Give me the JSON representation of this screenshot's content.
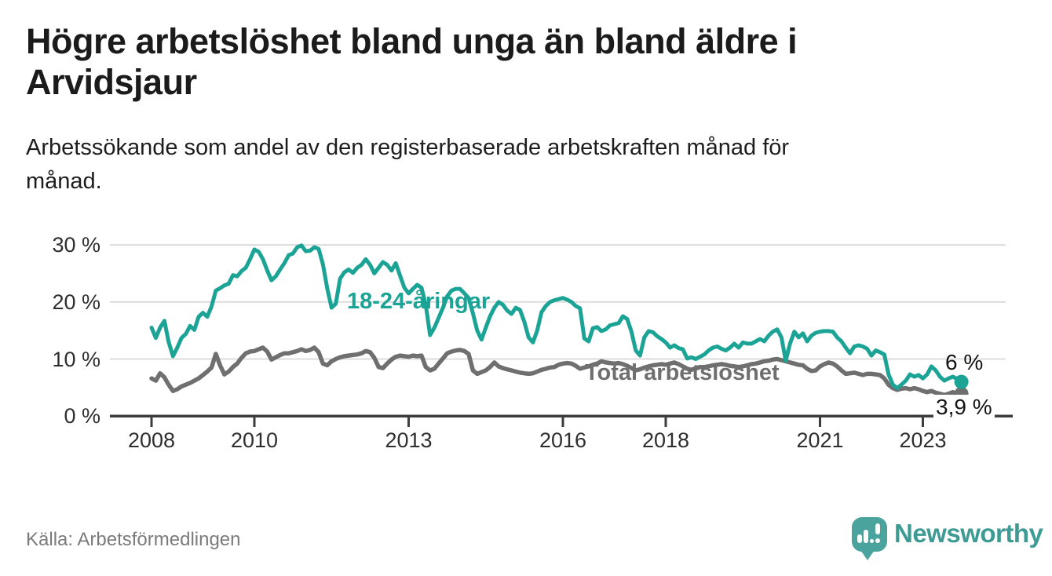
{
  "header": {
    "title_line1": "Högre arbetslöshet bland unga än bland äldre i",
    "title_line2": "Arvidsjaur",
    "subtitle_line1": "Arbetssökande som andel av den registerbaserade arbetskraften månad för",
    "subtitle_line2": "månad."
  },
  "footer": {
    "source": "Källa: Arbetsförmedlingen",
    "brand": "Newsworthy",
    "brand_text_color": "#3e9b93",
    "brand_bubble_color": "#4ba39d"
  },
  "chart_data": {
    "type": "line",
    "title": "Högre arbetslöshet bland unga än bland äldre i Arvidsjaur",
    "subtitle": "Arbetssökande som andel av den registerbaserade arbetskraften månad för månad.",
    "unit": "%",
    "frequency": "monthly",
    "x_start": "2008-01",
    "x_end": "2023-10",
    "ylim": [
      0,
      31
    ],
    "grid": true,
    "legend_position": "inline-labels",
    "y_ticks": [
      "30 %",
      "20 %",
      "10 %",
      "0 %"
    ],
    "x_ticks": [
      "2008",
      "2010",
      "2013",
      "2016",
      "2018",
      "2021",
      "2023"
    ],
    "x_tick_years": [
      2008,
      2010,
      2013,
      2016,
      2018,
      2021,
      2023
    ],
    "series": [
      {
        "name": "18-24-åringar",
        "color": "#1ba496",
        "end_label": "6 %",
        "end_value": 6.0,
        "values": [
          15.5,
          13.7,
          15.5,
          16.7,
          13.0,
          10.5,
          12.0,
          13.7,
          14.4,
          15.8,
          15.1,
          17.4,
          18.1,
          17.4,
          19.2,
          22.0,
          22.4,
          22.9,
          23.2,
          24.7,
          24.5,
          25.4,
          26.0,
          27.5,
          29.2,
          28.8,
          27.5,
          25.5,
          23.8,
          24.5,
          25.7,
          26.8,
          28.2,
          28.5,
          29.6,
          29.9,
          28.9,
          29.0,
          29.6,
          29.3,
          26.6,
          22.4,
          19.0,
          19.7,
          24.1,
          25.2,
          25.7,
          25.1,
          26.0,
          26.5,
          27.5,
          26.5,
          25.0,
          26.0,
          27.0,
          26.5,
          25.5,
          26.8,
          24.6,
          22.5,
          21.5,
          22.3,
          23.0,
          22.5,
          19.5,
          14.2,
          15.5,
          17.2,
          19.0,
          21.0,
          22.0,
          22.3,
          22.3,
          21.5,
          20.7,
          18.0,
          15.0,
          13.4,
          15.5,
          17.5,
          19.0,
          20.0,
          19.5,
          18.5,
          17.9,
          19.0,
          18.6,
          16.5,
          13.8,
          12.9,
          15.0,
          18.2,
          19.3,
          20.0,
          20.3,
          20.5,
          20.7,
          20.4,
          20.0,
          19.3,
          18.9,
          13.6,
          13.1,
          15.4,
          15.6,
          14.9,
          15.2,
          15.9,
          16.1,
          16.3,
          17.5,
          17.0,
          14.8,
          11.5,
          10.6,
          13.8,
          14.9,
          14.7,
          14.0,
          13.5,
          12.9,
          12.0,
          12.4,
          11.9,
          11.7,
          10.1,
          10.3,
          10.0,
          10.4,
          10.8,
          11.5,
          12.0,
          12.2,
          11.8,
          11.5,
          12.0,
          12.7,
          12.0,
          12.9,
          12.7,
          12.7,
          13.1,
          13.5,
          13.1,
          14.1,
          14.8,
          15.2,
          13.8,
          9.7,
          12.7,
          14.8,
          13.8,
          14.5,
          13.1,
          14.1,
          14.6,
          14.8,
          14.9,
          14.9,
          14.8,
          13.8,
          13.1,
          12.0,
          11.0,
          12.2,
          12.4,
          12.2,
          11.8,
          10.6,
          11.5,
          11.2,
          10.8,
          7.3,
          5.5,
          4.9,
          5.5,
          6.2,
          7.3,
          6.9,
          7.2,
          6.6,
          7.3,
          8.7,
          8.0,
          6.9,
          6.2,
          6.6,
          6.9,
          6.5,
          6.0
        ]
      },
      {
        "name": "Total arbetslöshet",
        "color": "#6f6f6f",
        "end_label": "3,9 %",
        "end_value": 3.9,
        "values": [
          6.6,
          6.2,
          7.5,
          6.8,
          5.5,
          4.4,
          4.7,
          5.2,
          5.5,
          5.8,
          6.2,
          6.6,
          7.2,
          7.8,
          8.5,
          10.9,
          8.9,
          7.3,
          7.8,
          8.6,
          9.2,
          10.2,
          11.0,
          11.3,
          11.4,
          11.7,
          12.0,
          11.3,
          9.9,
          10.3,
          10.7,
          11.0,
          11.0,
          11.2,
          11.4,
          11.7,
          11.4,
          11.6,
          12.0,
          11.2,
          9.2,
          8.9,
          9.6,
          10.0,
          10.3,
          10.5,
          10.6,
          10.7,
          10.8,
          11.0,
          11.4,
          11.2,
          10.2,
          8.6,
          8.4,
          9.2,
          9.9,
          10.4,
          10.6,
          10.5,
          10.4,
          10.6,
          10.5,
          10.6,
          8.6,
          8.0,
          8.3,
          9.2,
          10.1,
          11.0,
          11.3,
          11.5,
          11.6,
          11.4,
          10.9,
          8.0,
          7.4,
          7.7,
          8.0,
          8.6,
          9.4,
          8.7,
          8.4,
          8.2,
          8.0,
          7.8,
          7.6,
          7.5,
          7.4,
          7.5,
          7.8,
          8.1,
          8.3,
          8.5,
          8.6,
          9.0,
          9.2,
          9.3,
          9.2,
          8.8,
          8.3,
          8.5,
          8.7,
          9.0,
          9.2,
          9.6,
          9.4,
          9.3,
          9.2,
          9.3,
          9.1,
          8.8,
          8.4,
          8.0,
          8.2,
          8.5,
          8.7,
          8.9,
          9.0,
          9.1,
          9.0,
          9.2,
          9.4,
          9.1,
          8.7,
          8.3,
          8.1,
          8.4,
          8.6,
          8.6,
          8.7,
          8.9,
          9.0,
          9.1,
          9.0,
          8.8,
          8.7,
          8.6,
          8.7,
          8.9,
          9.1,
          9.2,
          9.4,
          9.6,
          9.7,
          9.9,
          10.0,
          9.8,
          9.6,
          9.4,
          9.2,
          9.0,
          8.9,
          8.3,
          7.9,
          8.0,
          8.7,
          9.1,
          9.4,
          9.2,
          8.7,
          8.0,
          7.4,
          7.5,
          7.6,
          7.4,
          7.2,
          7.4,
          7.4,
          7.3,
          7.2,
          6.6,
          5.5,
          4.9,
          4.6,
          4.8,
          4.9,
          4.7,
          4.9,
          4.7,
          4.4,
          4.2,
          4.4,
          4.1,
          3.9,
          3.7,
          3.9,
          4.2,
          3.9,
          3.9
        ]
      }
    ]
  }
}
